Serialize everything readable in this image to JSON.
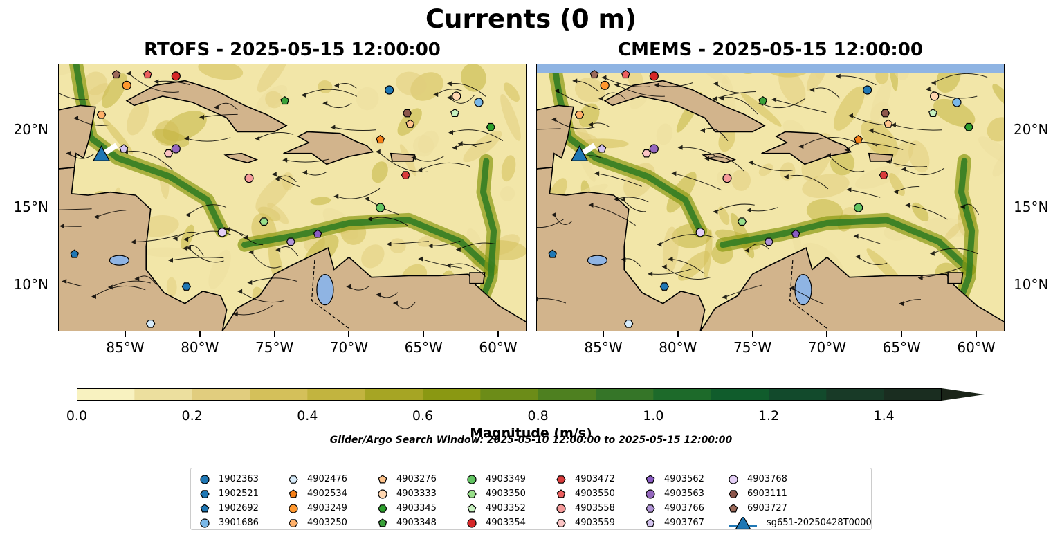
{
  "figure": {
    "title": "Currents (0 m)",
    "left_title": "RTOFS - 2025-05-15 12:00:00",
    "right_title": "CMEMS - 2025-05-15 12:00:00",
    "search_window": "Glider/Argo Search Window: 2025-05-10 12:00:00 to 2025-05-15 12:00:00"
  },
  "axes": {
    "lon_ticks": [
      "85°W",
      "80°W",
      "75°W",
      "70°W",
      "65°W",
      "60°W"
    ],
    "lat_ticks": [
      "20°N",
      "15°N",
      "10°N"
    ]
  },
  "colorbar": {
    "label": "Magnitude (m/s)",
    "ticks": [
      "0.0",
      "0.2",
      "0.4",
      "0.6",
      "0.8",
      "1.0",
      "1.2",
      "1.4"
    ],
    "colors": [
      "#f8f2c0",
      "#ecdf9e",
      "#e1cd7e",
      "#d4c05a",
      "#c2b43f",
      "#a6a524",
      "#8a9812",
      "#6c8c18",
      "#4e8020",
      "#357528",
      "#1d6a2a",
      "#105c2c",
      "#124a2c",
      "#183a27",
      "#1a2d20",
      "#1a2418"
    ]
  },
  "map_colors": {
    "land": "#d2b48c",
    "ocean": "#f2e6a8",
    "lake": "#8fb4e3",
    "strong": "#2d7a22"
  },
  "legend": [
    {
      "label": "1902363",
      "color": "#1f77b4",
      "shape": "circle"
    },
    {
      "label": "1902521",
      "color": "#1f77b4",
      "shape": "hexagon"
    },
    {
      "label": "1902692",
      "color": "#1f77b4",
      "shape": "pentagon"
    },
    {
      "label": "3901686",
      "color": "#7ab8e8",
      "shape": "circle"
    },
    {
      "label": "4902476",
      "color": "#d7ecfb",
      "shape": "hexagon"
    },
    {
      "label": "4902534",
      "color": "#f57f17",
      "shape": "pentagon"
    },
    {
      "label": "4903249",
      "color": "#ff982f",
      "shape": "circle"
    },
    {
      "label": "4903250",
      "color": "#ffb069",
      "shape": "hexagon"
    },
    {
      "label": "4903276",
      "color": "#ffc48c",
      "shape": "pentagon"
    },
    {
      "label": "4903333",
      "color": "#ffd6b0",
      "shape": "circle"
    },
    {
      "label": "4903345",
      "color": "#2ca02c",
      "shape": "hexagon"
    },
    {
      "label": "4903348",
      "color": "#3aa23a",
      "shape": "pentagon"
    },
    {
      "label": "4903349",
      "color": "#62c462",
      "shape": "circle"
    },
    {
      "label": "4903350",
      "color": "#98df8a",
      "shape": "hexagon"
    },
    {
      "label": "4903352",
      "color": "#c8f2c0",
      "shape": "pentagon"
    },
    {
      "label": "4903354",
      "color": "#d62728",
      "shape": "circle"
    },
    {
      "label": "4903472",
      "color": "#d93b3b",
      "shape": "hexagon"
    },
    {
      "label": "4903550",
      "color": "#ec5f5f",
      "shape": "pentagon"
    },
    {
      "label": "4903558",
      "color": "#f59a9a",
      "shape": "circle"
    },
    {
      "label": "4903559",
      "color": "#fbc4c4",
      "shape": "hexagon"
    },
    {
      "label": "4903562",
      "color": "#8a5cc4",
      "shape": "pentagon"
    },
    {
      "label": "4903563",
      "color": "#9467bd",
      "shape": "circle"
    },
    {
      "label": "4903766",
      "color": "#b094d6",
      "shape": "hexagon"
    },
    {
      "label": "4903767",
      "color": "#d3c3ee",
      "shape": "pentagon"
    },
    {
      "label": "4903768",
      "color": "#e4cff6",
      "shape": "circle"
    },
    {
      "label": "6903111",
      "color": "#8c564b",
      "shape": "hexagon"
    },
    {
      "label": "6903727",
      "color": "#9c6a5a",
      "shape": "pentagon"
    },
    {
      "label": "sg651-20250428T0000",
      "color": "#1f77b4",
      "shape": "triangle"
    }
  ],
  "floats": [
    {
      "label": "1902363",
      "lon": -67.3,
      "lat": 22.6
    },
    {
      "label": "1902521",
      "lon": -80.9,
      "lat": 9.9
    },
    {
      "label": "1902692",
      "lon": -88.4,
      "lat": 12.0
    },
    {
      "label": "3901686",
      "lon": -61.3,
      "lat": 21.8
    },
    {
      "label": "4902476",
      "lon": -83.3,
      "lat": 7.5
    },
    {
      "label": "4902534",
      "lon": -67.9,
      "lat": 19.4
    },
    {
      "label": "4903249",
      "lon": -84.9,
      "lat": 22.9
    },
    {
      "label": "4903250",
      "lon": -86.6,
      "lat": 21.0
    },
    {
      "label": "4903276",
      "lon": -65.9,
      "lat": 20.4
    },
    {
      "label": "4903333",
      "lon": -62.8,
      "lat": 22.2
    },
    {
      "label": "4903345",
      "lon": -60.5,
      "lat": 20.2
    },
    {
      "label": "4903348",
      "lon": -74.3,
      "lat": 21.9
    },
    {
      "label": "4903349",
      "lon": -67.9,
      "lat": 15.0
    },
    {
      "label": "4903350",
      "lon": -75.7,
      "lat": 14.1
    },
    {
      "label": "4903352",
      "lon": -62.9,
      "lat": 21.1
    },
    {
      "label": "4903354",
      "lon": -81.6,
      "lat": 23.5
    },
    {
      "label": "4903472",
      "lon": -66.2,
      "lat": 17.1
    },
    {
      "label": "4903550",
      "lon": -83.5,
      "lat": 23.6
    },
    {
      "label": "4903558",
      "lon": -76.7,
      "lat": 16.9
    },
    {
      "label": "4903559",
      "lon": -82.1,
      "lat": 18.5
    },
    {
      "label": "4903562",
      "lon": -72.1,
      "lat": 13.3
    },
    {
      "label": "4903563",
      "lon": -81.6,
      "lat": 18.8
    },
    {
      "label": "4903766",
      "lon": -73.9,
      "lat": 12.8
    },
    {
      "label": "4903767",
      "lon": -85.1,
      "lat": 18.8
    },
    {
      "label": "4903768",
      "lon": -78.5,
      "lat": 13.4
    },
    {
      "label": "6903111",
      "lon": -66.1,
      "lat": 21.1
    },
    {
      "label": "6903727",
      "lon": -85.6,
      "lat": 23.6
    }
  ],
  "glider": {
    "label": "sg651-20250428T0000",
    "lon": -86.6,
    "lat": 18.4
  }
}
